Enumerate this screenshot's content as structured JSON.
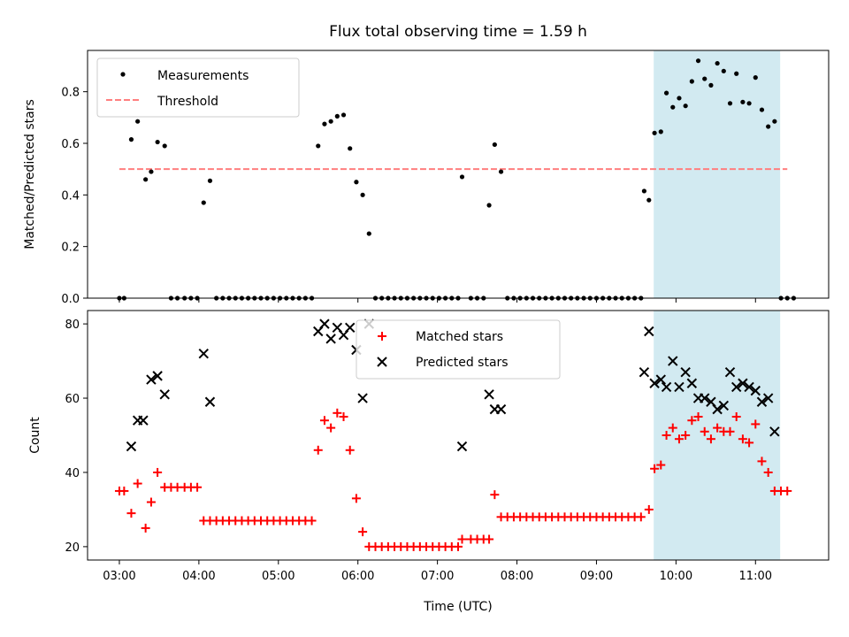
{
  "chart_data": [
    {
      "type": "scatter",
      "title": "Flux total observing time = 1.59 h",
      "ylabel": "Matched/Predicted stars",
      "xlabel": "",
      "xlim": [
        2.6,
        11.92
      ],
      "ylim": [
        0,
        0.96
      ],
      "x_ticks": [
        3,
        4,
        5,
        6,
        7,
        8,
        9,
        10,
        11
      ],
      "x_tick_labels": [
        "03:00",
        "04:00",
        "05:00",
        "06:00",
        "07:00",
        "08:00",
        "09:00",
        "10:00",
        "11:00"
      ],
      "show_x_tick_labels": false,
      "y_ticks": [
        0.0,
        0.2,
        0.4,
        0.6,
        0.8
      ],
      "y_tick_labels": [
        "0.0",
        "0.2",
        "0.4",
        "0.6",
        "0.8"
      ],
      "shaded_region": {
        "x_start": 9.72,
        "x_end": 11.31,
        "color": "#add8e6"
      },
      "threshold": {
        "label": "Threshold",
        "y": 0.5,
        "x_start": 3.0,
        "x_end": 11.4,
        "color": "#ff7f7f"
      },
      "series": [
        {
          "name": "Measurements",
          "marker": "dot",
          "color": "#000000",
          "points": [
            [
              3.0,
              0.0
            ],
            [
              3.06,
              0.0
            ],
            [
              3.15,
              0.615
            ],
            [
              3.23,
              0.685
            ],
            [
              3.33,
              0.46
            ],
            [
              3.4,
              0.49
            ],
            [
              3.48,
              0.605
            ],
            [
              3.57,
              0.59
            ],
            [
              3.65,
              0.0
            ],
            [
              3.73,
              0.0
            ],
            [
              3.82,
              0.0
            ],
            [
              3.9,
              0.0
            ],
            [
              3.98,
              0.0
            ],
            [
              4.06,
              0.37
            ],
            [
              4.14,
              0.455
            ],
            [
              4.22,
              0.0
            ],
            [
              4.3,
              0.0
            ],
            [
              4.38,
              0.0
            ],
            [
              4.46,
              0.0
            ],
            [
              4.54,
              0.0
            ],
            [
              4.62,
              0.0
            ],
            [
              4.7,
              0.0
            ],
            [
              4.78,
              0.0
            ],
            [
              4.86,
              0.0
            ],
            [
              4.94,
              0.0
            ],
            [
              5.02,
              0.0
            ],
            [
              5.1,
              0.0
            ],
            [
              5.18,
              0.0
            ],
            [
              5.26,
              0.0
            ],
            [
              5.34,
              0.0
            ],
            [
              5.42,
              0.0
            ],
            [
              5.5,
              0.59
            ],
            [
              5.58,
              0.675
            ],
            [
              5.66,
              0.685
            ],
            [
              5.74,
              0.705
            ],
            [
              5.82,
              0.71
            ],
            [
              5.9,
              0.58
            ],
            [
              5.98,
              0.45
            ],
            [
              6.06,
              0.4
            ],
            [
              6.14,
              0.25
            ],
            [
              6.22,
              0.0
            ],
            [
              6.3,
              0.0
            ],
            [
              6.38,
              0.0
            ],
            [
              6.46,
              0.0
            ],
            [
              6.54,
              0.0
            ],
            [
              6.62,
              0.0
            ],
            [
              6.7,
              0.0
            ],
            [
              6.78,
              0.0
            ],
            [
              6.86,
              0.0
            ],
            [
              6.94,
              0.0
            ],
            [
              7.02,
              0.0
            ],
            [
              7.1,
              0.0
            ],
            [
              7.18,
              0.0
            ],
            [
              7.26,
              0.0
            ],
            [
              7.31,
              0.47
            ],
            [
              7.42,
              0.0
            ],
            [
              7.5,
              0.0
            ],
            [
              7.58,
              0.0
            ],
            [
              7.65,
              0.36
            ],
            [
              7.72,
              0.595
            ],
            [
              7.8,
              0.49
            ],
            [
              7.88,
              0.0
            ],
            [
              7.96,
              0.0
            ],
            [
              8.04,
              0.0
            ],
            [
              8.12,
              0.0
            ],
            [
              8.2,
              0.0
            ],
            [
              8.28,
              0.0
            ],
            [
              8.36,
              0.0
            ],
            [
              8.44,
              0.0
            ],
            [
              8.52,
              0.0
            ],
            [
              8.6,
              0.0
            ],
            [
              8.68,
              0.0
            ],
            [
              8.76,
              0.0
            ],
            [
              8.84,
              0.0
            ],
            [
              8.92,
              0.0
            ],
            [
              9.0,
              0.0
            ],
            [
              9.08,
              0.0
            ],
            [
              9.16,
              0.0
            ],
            [
              9.24,
              0.0
            ],
            [
              9.32,
              0.0
            ],
            [
              9.4,
              0.0
            ],
            [
              9.48,
              0.0
            ],
            [
              9.56,
              0.0
            ],
            [
              9.6,
              0.415
            ],
            [
              9.66,
              0.38
            ],
            [
              9.73,
              0.64
            ],
            [
              9.81,
              0.645
            ],
            [
              9.88,
              0.795
            ],
            [
              9.96,
              0.74
            ],
            [
              10.04,
              0.775
            ],
            [
              10.12,
              0.745
            ],
            [
              10.2,
              0.84
            ],
            [
              10.28,
              0.92
            ],
            [
              10.36,
              0.85
            ],
            [
              10.44,
              0.825
            ],
            [
              10.52,
              0.91
            ],
            [
              10.6,
              0.88
            ],
            [
              10.68,
              0.755
            ],
            [
              10.76,
              0.87
            ],
            [
              10.84,
              0.76
            ],
            [
              10.92,
              0.755
            ],
            [
              11.0,
              0.855
            ],
            [
              11.08,
              0.73
            ],
            [
              11.16,
              0.665
            ],
            [
              11.24,
              0.685
            ],
            [
              11.32,
              0.0
            ],
            [
              11.4,
              0.0
            ],
            [
              11.48,
              0.0
            ]
          ]
        }
      ],
      "legend": {
        "placement": "upper-left",
        "entries": [
          "Measurements",
          "Threshold"
        ]
      }
    },
    {
      "type": "scatter",
      "title": "",
      "xlabel": "Time (UTC)",
      "ylabel": "Count",
      "xlim": [
        2.6,
        11.92
      ],
      "ylim": [
        16.4,
        83.6
      ],
      "x_ticks": [
        3,
        4,
        5,
        6,
        7,
        8,
        9,
        10,
        11
      ],
      "x_tick_labels": [
        "03:00",
        "04:00",
        "05:00",
        "06:00",
        "07:00",
        "08:00",
        "09:00",
        "10:00",
        "11:00"
      ],
      "show_x_tick_labels": true,
      "y_ticks": [
        20,
        40,
        60,
        80
      ],
      "y_tick_labels": [
        "20",
        "40",
        "60",
        "80"
      ],
      "shaded_region": {
        "x_start": 9.72,
        "x_end": 11.31,
        "color": "#add8e6"
      },
      "series": [
        {
          "name": "Matched stars",
          "marker": "plus",
          "color": "#ff0000",
          "points": [
            [
              3.0,
              35
            ],
            [
              3.06,
              35
            ],
            [
              3.15,
              29
            ],
            [
              3.23,
              37
            ],
            [
              3.33,
              25
            ],
            [
              3.4,
              32
            ],
            [
              3.48,
              40
            ],
            [
              3.57,
              36
            ],
            [
              3.65,
              36
            ],
            [
              3.73,
              36
            ],
            [
              3.82,
              36
            ],
            [
              3.9,
              36
            ],
            [
              3.98,
              36
            ],
            [
              4.06,
              27
            ],
            [
              4.14,
              27
            ],
            [
              4.22,
              27
            ],
            [
              4.3,
              27
            ],
            [
              4.38,
              27
            ],
            [
              4.46,
              27
            ],
            [
              4.54,
              27
            ],
            [
              4.62,
              27
            ],
            [
              4.7,
              27
            ],
            [
              4.78,
              27
            ],
            [
              4.86,
              27
            ],
            [
              4.94,
              27
            ],
            [
              5.02,
              27
            ],
            [
              5.1,
              27
            ],
            [
              5.18,
              27
            ],
            [
              5.26,
              27
            ],
            [
              5.34,
              27
            ],
            [
              5.42,
              27
            ],
            [
              5.5,
              46
            ],
            [
              5.58,
              54
            ],
            [
              5.66,
              52
            ],
            [
              5.74,
              56
            ],
            [
              5.82,
              55
            ],
            [
              5.9,
              46
            ],
            [
              5.98,
              33
            ],
            [
              6.06,
              24
            ],
            [
              6.14,
              20
            ],
            [
              6.22,
              20
            ],
            [
              6.3,
              20
            ],
            [
              6.38,
              20
            ],
            [
              6.46,
              20
            ],
            [
              6.54,
              20
            ],
            [
              6.62,
              20
            ],
            [
              6.7,
              20
            ],
            [
              6.78,
              20
            ],
            [
              6.86,
              20
            ],
            [
              6.94,
              20
            ],
            [
              7.02,
              20
            ],
            [
              7.1,
              20
            ],
            [
              7.18,
              20
            ],
            [
              7.26,
              20
            ],
            [
              7.31,
              22
            ],
            [
              7.42,
              22
            ],
            [
              7.5,
              22
            ],
            [
              7.58,
              22
            ],
            [
              7.65,
              22
            ],
            [
              7.72,
              34
            ],
            [
              7.8,
              28
            ],
            [
              7.88,
              28
            ],
            [
              7.96,
              28
            ],
            [
              8.04,
              28
            ],
            [
              8.12,
              28
            ],
            [
              8.2,
              28
            ],
            [
              8.28,
              28
            ],
            [
              8.36,
              28
            ],
            [
              8.44,
              28
            ],
            [
              8.52,
              28
            ],
            [
              8.6,
              28
            ],
            [
              8.68,
              28
            ],
            [
              8.76,
              28
            ],
            [
              8.84,
              28
            ],
            [
              8.92,
              28
            ],
            [
              9.0,
              28
            ],
            [
              9.08,
              28
            ],
            [
              9.16,
              28
            ],
            [
              9.24,
              28
            ],
            [
              9.32,
              28
            ],
            [
              9.4,
              28
            ],
            [
              9.48,
              28
            ],
            [
              9.56,
              28
            ],
            [
              9.66,
              30
            ],
            [
              9.73,
              41
            ],
            [
              9.81,
              42
            ],
            [
              9.88,
              50
            ],
            [
              9.96,
              52
            ],
            [
              10.04,
              49
            ],
            [
              10.12,
              50
            ],
            [
              10.2,
              54
            ],
            [
              10.28,
              55
            ],
            [
              10.36,
              51
            ],
            [
              10.44,
              49
            ],
            [
              10.52,
              52
            ],
            [
              10.6,
              51
            ],
            [
              10.68,
              51
            ],
            [
              10.76,
              55
            ],
            [
              10.84,
              49
            ],
            [
              10.92,
              48
            ],
            [
              11.0,
              53
            ],
            [
              11.08,
              43
            ],
            [
              11.16,
              40
            ],
            [
              11.24,
              35
            ],
            [
              11.32,
              35
            ],
            [
              11.4,
              35
            ]
          ]
        },
        {
          "name": "Predicted stars",
          "marker": "x",
          "color": "#000000",
          "points": [
            [
              3.15,
              47
            ],
            [
              3.23,
              54
            ],
            [
              3.3,
              54
            ],
            [
              3.4,
              65
            ],
            [
              3.48,
              66
            ],
            [
              3.57,
              61
            ],
            [
              4.06,
              72
            ],
            [
              4.14,
              59
            ],
            [
              5.5,
              78
            ],
            [
              5.58,
              80
            ],
            [
              5.66,
              76
            ],
            [
              5.74,
              79
            ],
            [
              5.82,
              77
            ],
            [
              5.9,
              79
            ],
            [
              5.98,
              73
            ],
            [
              6.06,
              60
            ],
            [
              6.14,
              80
            ],
            [
              7.31,
              47
            ],
            [
              7.65,
              61
            ],
            [
              7.72,
              57
            ],
            [
              7.8,
              57
            ],
            [
              9.6,
              67
            ],
            [
              9.66,
              78
            ],
            [
              9.73,
              64
            ],
            [
              9.81,
              65
            ],
            [
              9.88,
              63
            ],
            [
              9.96,
              70
            ],
            [
              10.04,
              63
            ],
            [
              10.12,
              67
            ],
            [
              10.2,
              64
            ],
            [
              10.28,
              60
            ],
            [
              10.36,
              60
            ],
            [
              10.44,
              59
            ],
            [
              10.52,
              57
            ],
            [
              10.6,
              58
            ],
            [
              10.68,
              67
            ],
            [
              10.76,
              63
            ],
            [
              10.84,
              64
            ],
            [
              10.92,
              63
            ],
            [
              11.0,
              62
            ],
            [
              11.08,
              59
            ],
            [
              11.16,
              60
            ],
            [
              11.24,
              51
            ]
          ]
        }
      ],
      "legend": {
        "placement": "upper-center",
        "entries": [
          "Matched stars",
          "Predicted stars"
        ]
      }
    }
  ]
}
